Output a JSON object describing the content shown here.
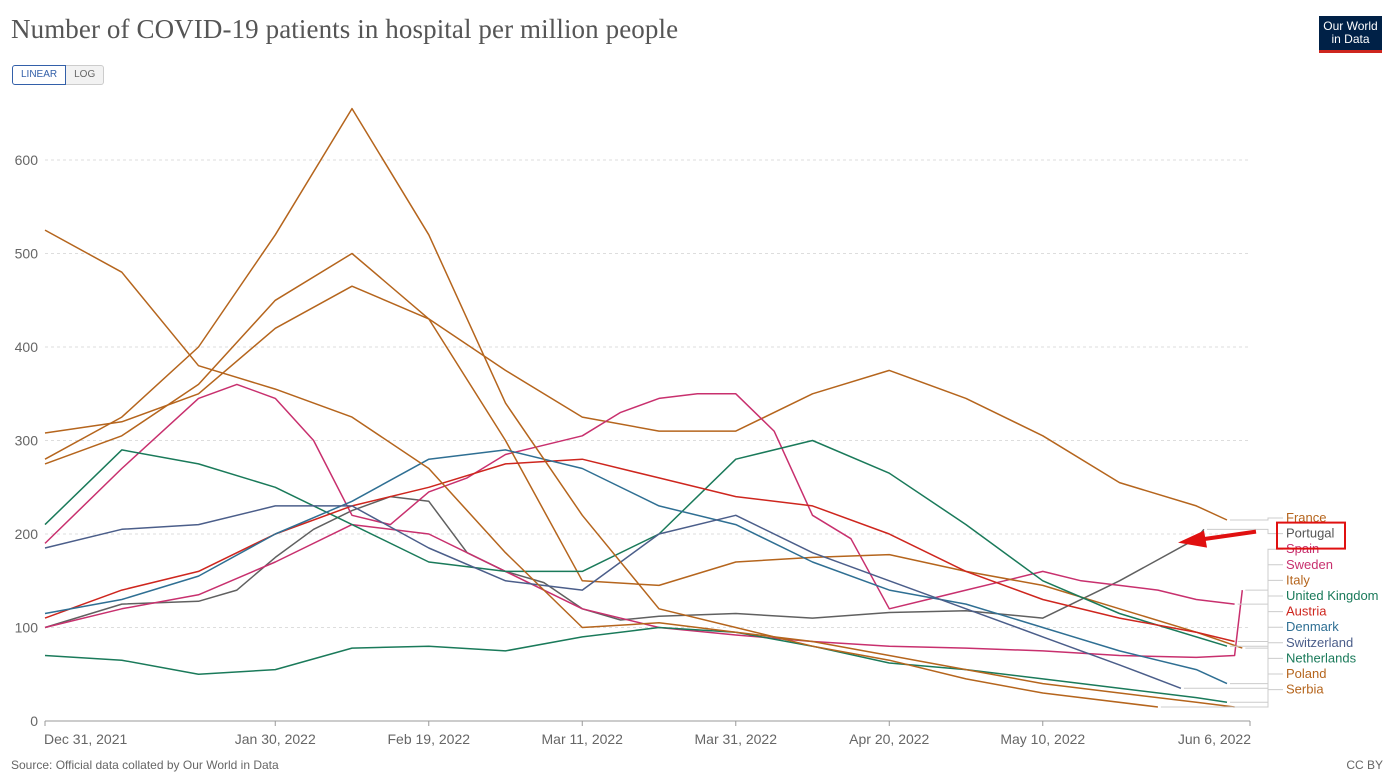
{
  "header": {
    "title": "Number of COVID-19 patients in hospital per million people",
    "logo_line1": "Our World",
    "logo_line2": "in Data"
  },
  "toggle": {
    "linear": "LINEAR",
    "log": "LOG"
  },
  "footer": {
    "source": "Source: Official data collated by Our World in Data",
    "license": "CC BY"
  },
  "colors": {
    "orange": "#b5651d",
    "pink": "#c8306e",
    "red": "#ce261e",
    "teal": "#1a7a5a",
    "blue": "#2f6f93",
    "slate": "#4b5e8a",
    "gray": "#606060"
  },
  "chart_data": {
    "type": "line",
    "y_ticks": [
      0,
      100,
      200,
      300,
      400,
      500,
      600
    ],
    "x_ticks": [
      "Dec 31, 2021",
      "Jan 30, 2022",
      "Feb 19, 2022",
      "Mar 11, 2022",
      "Mar 31, 2022",
      "Apr 20, 2022",
      "May 10, 2022",
      "Jun 6, 2022"
    ],
    "x_tick_days": [
      0,
      30,
      50,
      70,
      90,
      110,
      130,
      157
    ],
    "xlim": [
      0,
      157
    ],
    "ylim": [
      0,
      640
    ],
    "grid": true,
    "series": [
      {
        "name": "France",
        "color": "#b5651d",
        "x": [
          0,
          10,
          20,
          30,
          40,
          50,
          60,
          70,
          80,
          90,
          100,
          110,
          120,
          130,
          140,
          150,
          154
        ],
        "y": [
          308,
          320,
          350,
          420,
          465,
          430,
          375,
          325,
          310,
          310,
          350,
          375,
          345,
          305,
          255,
          230,
          215
        ]
      },
      {
        "name": "Portugal",
        "color": "#606060",
        "x": [
          0,
          10,
          20,
          25,
          30,
          35,
          40,
          45,
          50,
          55,
          60,
          65,
          70,
          75,
          80,
          90,
          100,
          110,
          120,
          130,
          140,
          150,
          151
        ],
        "y": [
          100,
          125,
          128,
          140,
          175,
          205,
          225,
          240,
          235,
          180,
          160,
          148,
          120,
          108,
          112,
          115,
          110,
          116,
          118,
          110,
          150,
          195,
          205
        ]
      },
      {
        "name": "Spain",
        "color": "#c8306e",
        "x": [
          0,
          10,
          20,
          30,
          40,
          50,
          60,
          70,
          80,
          90,
          100,
          110,
          120,
          130,
          140,
          150,
          155,
          156
        ],
        "y": [
          100,
          120,
          135,
          170,
          210,
          200,
          160,
          120,
          100,
          92,
          85,
          80,
          78,
          75,
          70,
          68,
          70,
          140
        ]
      },
      {
        "name": "Sweden",
        "color": "#c8306e",
        "x": [
          0,
          10,
          20,
          25,
          30,
          35,
          40,
          45,
          50,
          55,
          60,
          65,
          70,
          75,
          80,
          85,
          90,
          95,
          100,
          105,
          110,
          115,
          120,
          125,
          130,
          135,
          140,
          145,
          150,
          155
        ],
        "y": [
          190,
          270,
          345,
          360,
          345,
          300,
          220,
          210,
          245,
          260,
          285,
          295,
          305,
          330,
          345,
          350,
          350,
          310,
          220,
          195,
          120,
          130,
          140,
          150,
          160,
          150,
          145,
          140,
          130,
          125
        ]
      },
      {
        "name": "Italy",
        "color": "#b5651d",
        "x": [
          0,
          10,
          20,
          30,
          40,
          50,
          60,
          70,
          80,
          90,
          100,
          110,
          120,
          130,
          140,
          150,
          156
        ],
        "y": [
          275,
          305,
          360,
          450,
          500,
          430,
          300,
          150,
          145,
          170,
          175,
          178,
          160,
          145,
          120,
          95,
          78
        ]
      },
      {
        "name": "United Kingdom",
        "color": "#1a7a5a",
        "x": [
          0,
          10,
          20,
          30,
          40,
          50,
          60,
          70,
          80,
          90,
          100,
          110,
          120,
          130,
          140,
          150,
          154
        ],
        "y": [
          210,
          290,
          275,
          250,
          210,
          170,
          160,
          160,
          200,
          280,
          300,
          265,
          210,
          150,
          115,
          90,
          80
        ]
      },
      {
        "name": "Austria",
        "color": "#ce261e",
        "x": [
          0,
          10,
          20,
          30,
          40,
          50,
          60,
          70,
          80,
          90,
          100,
          110,
          120,
          130,
          140,
          150,
          155
        ],
        "y": [
          110,
          140,
          160,
          200,
          230,
          250,
          275,
          280,
          260,
          240,
          230,
          200,
          160,
          130,
          110,
          95,
          85
        ]
      },
      {
        "name": "Denmark",
        "color": "#2f6f93",
        "x": [
          0,
          10,
          20,
          30,
          40,
          50,
          60,
          70,
          80,
          90,
          100,
          110,
          120,
          130,
          140,
          150,
          154
        ],
        "y": [
          115,
          130,
          155,
          200,
          235,
          280,
          290,
          270,
          230,
          210,
          170,
          140,
          125,
          100,
          75,
          55,
          40
        ]
      },
      {
        "name": "Switzerland",
        "color": "#4b5e8a",
        "x": [
          0,
          10,
          20,
          30,
          40,
          50,
          60,
          70,
          80,
          90,
          100,
          110,
          120,
          130,
          140,
          148
        ],
        "y": [
          185,
          205,
          210,
          230,
          230,
          185,
          150,
          140,
          200,
          220,
          180,
          150,
          120,
          90,
          60,
          35
        ]
      },
      {
        "name": "Netherlands",
        "color": "#1a7a5a",
        "x": [
          0,
          10,
          20,
          30,
          40,
          50,
          60,
          70,
          80,
          90,
          100,
          110,
          120,
          130,
          140,
          150,
          154
        ],
        "y": [
          70,
          65,
          50,
          55,
          78,
          80,
          75,
          90,
          100,
          95,
          80,
          62,
          55,
          45,
          35,
          25,
          20
        ]
      },
      {
        "name": "Poland",
        "color": "#b5651d",
        "x": [
          0,
          10,
          20,
          30,
          40,
          50,
          60,
          70,
          80,
          90,
          100,
          110,
          120,
          130,
          140,
          150,
          155
        ],
        "y": [
          525,
          480,
          380,
          355,
          325,
          270,
          180,
          100,
          105,
          95,
          85,
          70,
          55,
          40,
          30,
          20,
          15
        ]
      },
      {
        "name": "Serbia",
        "color": "#b5651d",
        "x": [
          0,
          10,
          20,
          30,
          40,
          50,
          60,
          70,
          80,
          90,
          100,
          110,
          120,
          130,
          145
        ],
        "y": [
          280,
          325,
          400,
          520,
          655,
          520,
          340,
          220,
          120,
          100,
          80,
          65,
          45,
          30,
          15
        ]
      }
    ],
    "legend_order": [
      "France",
      "Portugal",
      "Spain",
      "Sweden",
      "Italy",
      "United Kingdom",
      "Austria",
      "Denmark",
      "Switzerland",
      "Netherlands",
      "Poland",
      "Serbia"
    ],
    "highlighted": "Portugal"
  }
}
